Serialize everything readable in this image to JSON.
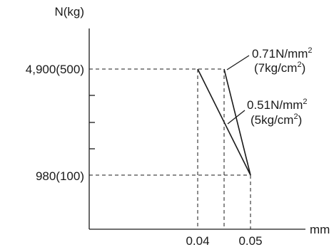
{
  "chart_data": {
    "type": "line",
    "title": "",
    "ylabel": "N(kg)",
    "xlabel": "mm",
    "x_ticks": [
      {
        "value": 0.04,
        "label": "0.04"
      },
      {
        "value": 0.05,
        "label": "0.05"
      }
    ],
    "y_ticks": [
      {
        "value": 4900,
        "label": "4,900(500)"
      },
      {
        "value": 980,
        "label": "980(100)"
      }
    ],
    "series": [
      {
        "name": "0.71N/mm² (7kg/cm²)",
        "label_line1": "0.71N/mm",
        "label_line1_sup": "2",
        "label_line2": "(7kg/cm",
        "label_line2_sup": "2",
        "label_line2_end": ")",
        "points": [
          [
            0.045,
            4900
          ],
          [
            0.05,
            980
          ]
        ]
      },
      {
        "name": "0.51N/mm² (5kg/cm²)",
        "label_line1": "0.51N/mm",
        "label_line1_sup": "2",
        "label_line2": "(5kg/cm",
        "label_line2_sup": "2",
        "label_line2_end": ")",
        "points": [
          [
            0.04,
            4900
          ],
          [
            0.05,
            980
          ]
        ]
      }
    ],
    "reference_x": [
      0.04,
      0.045,
      0.05
    ],
    "reference_y": [
      4900,
      980
    ],
    "colors": {
      "line": "#1a1a1a",
      "text": "#1a1a1a",
      "background": "#ffffff"
    }
  }
}
